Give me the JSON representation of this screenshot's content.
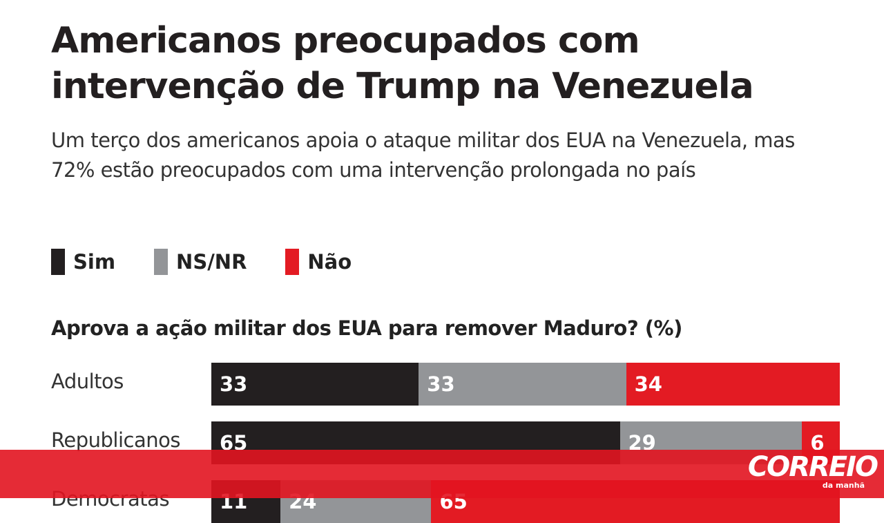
{
  "header": {
    "title_line1": "Americanos preocupados com",
    "title_line2": "intervenção de Trump na Venezuela",
    "subtitle": "Um terço dos americanos apoia o ataque militar dos EUA na Venezuela, mas 72% estão preocupados com uma intervenção prolongada no país"
  },
  "chart_data": {
    "type": "bar",
    "stacked": true,
    "orientation": "horizontal",
    "title": "Aprova a ação militar dos EUA para remover Maduro? (%)",
    "categories": [
      "Adultos",
      "Republicanos",
      "Democratas"
    ],
    "series": [
      {
        "name": "Sim",
        "color": "#231f20",
        "values": [
          33,
          65,
          11
        ]
      },
      {
        "name": "NS/NR",
        "color": "#939598",
        "values": [
          33,
          29,
          24
        ]
      },
      {
        "name": "Não",
        "color": "#e31b23",
        "values": [
          34,
          6,
          65
        ]
      }
    ],
    "xlim": [
      0,
      100
    ],
    "legend": "top-left"
  },
  "brand": {
    "name": "CORREIO",
    "tagline": "da manhã"
  }
}
